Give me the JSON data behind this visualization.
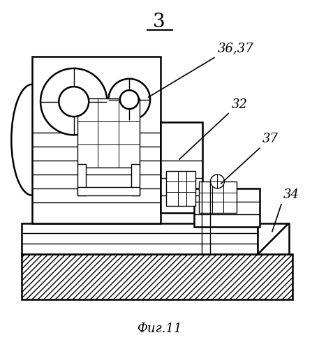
{
  "bg_color": "#ffffff",
  "line_color": "#000000",
  "title": "3",
  "caption": "Фиг.11",
  "lw_main": 1.8,
  "lw_thin": 1.0,
  "lw_inner": 0.7
}
